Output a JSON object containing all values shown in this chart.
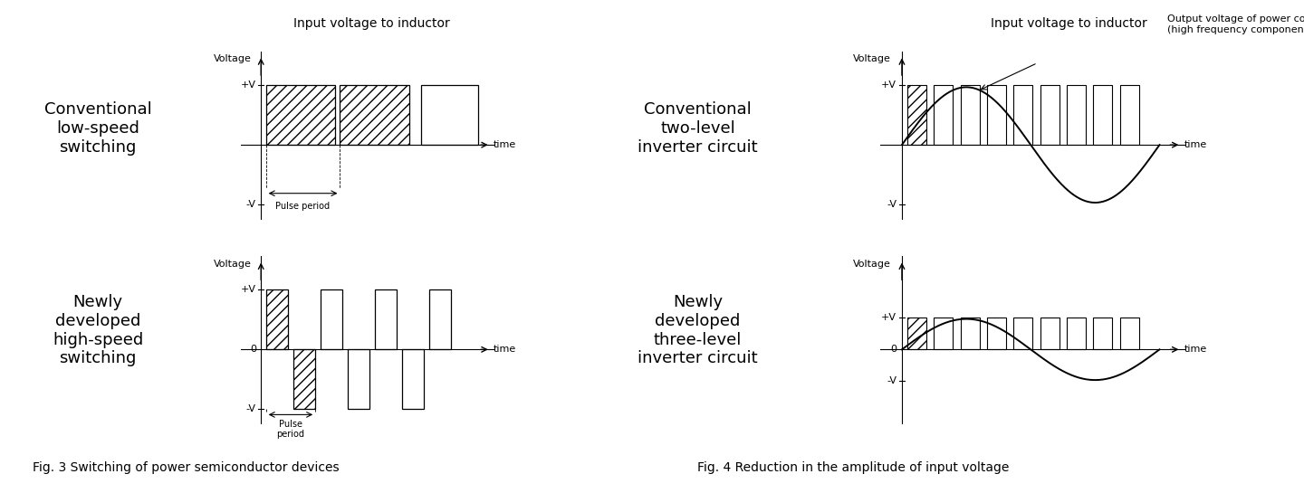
{
  "fig3_title": "Input voltage to inductor",
  "fig3_label1": "Conventional\nlow-speed\nswitching",
  "fig3_label2": "Newly\ndeveloped\nhigh-speed\nswitching",
  "fig3_caption": "Fig. 3 Switching of power semiconductor devices",
  "fig4_title": "Input voltage to inductor",
  "fig4_annotation": "Output voltage of power conditioner\n(high frequency components removed)",
  "fig4_label1": "Conventional\ntwo-level\ninverter circuit",
  "fig4_label2": "Newly\ndeveloped\nthree-level\ninverter circuit",
  "fig4_caption": "Fig. 4 Reduction in the amplitude of input voltage",
  "bg_color": "#ffffff"
}
